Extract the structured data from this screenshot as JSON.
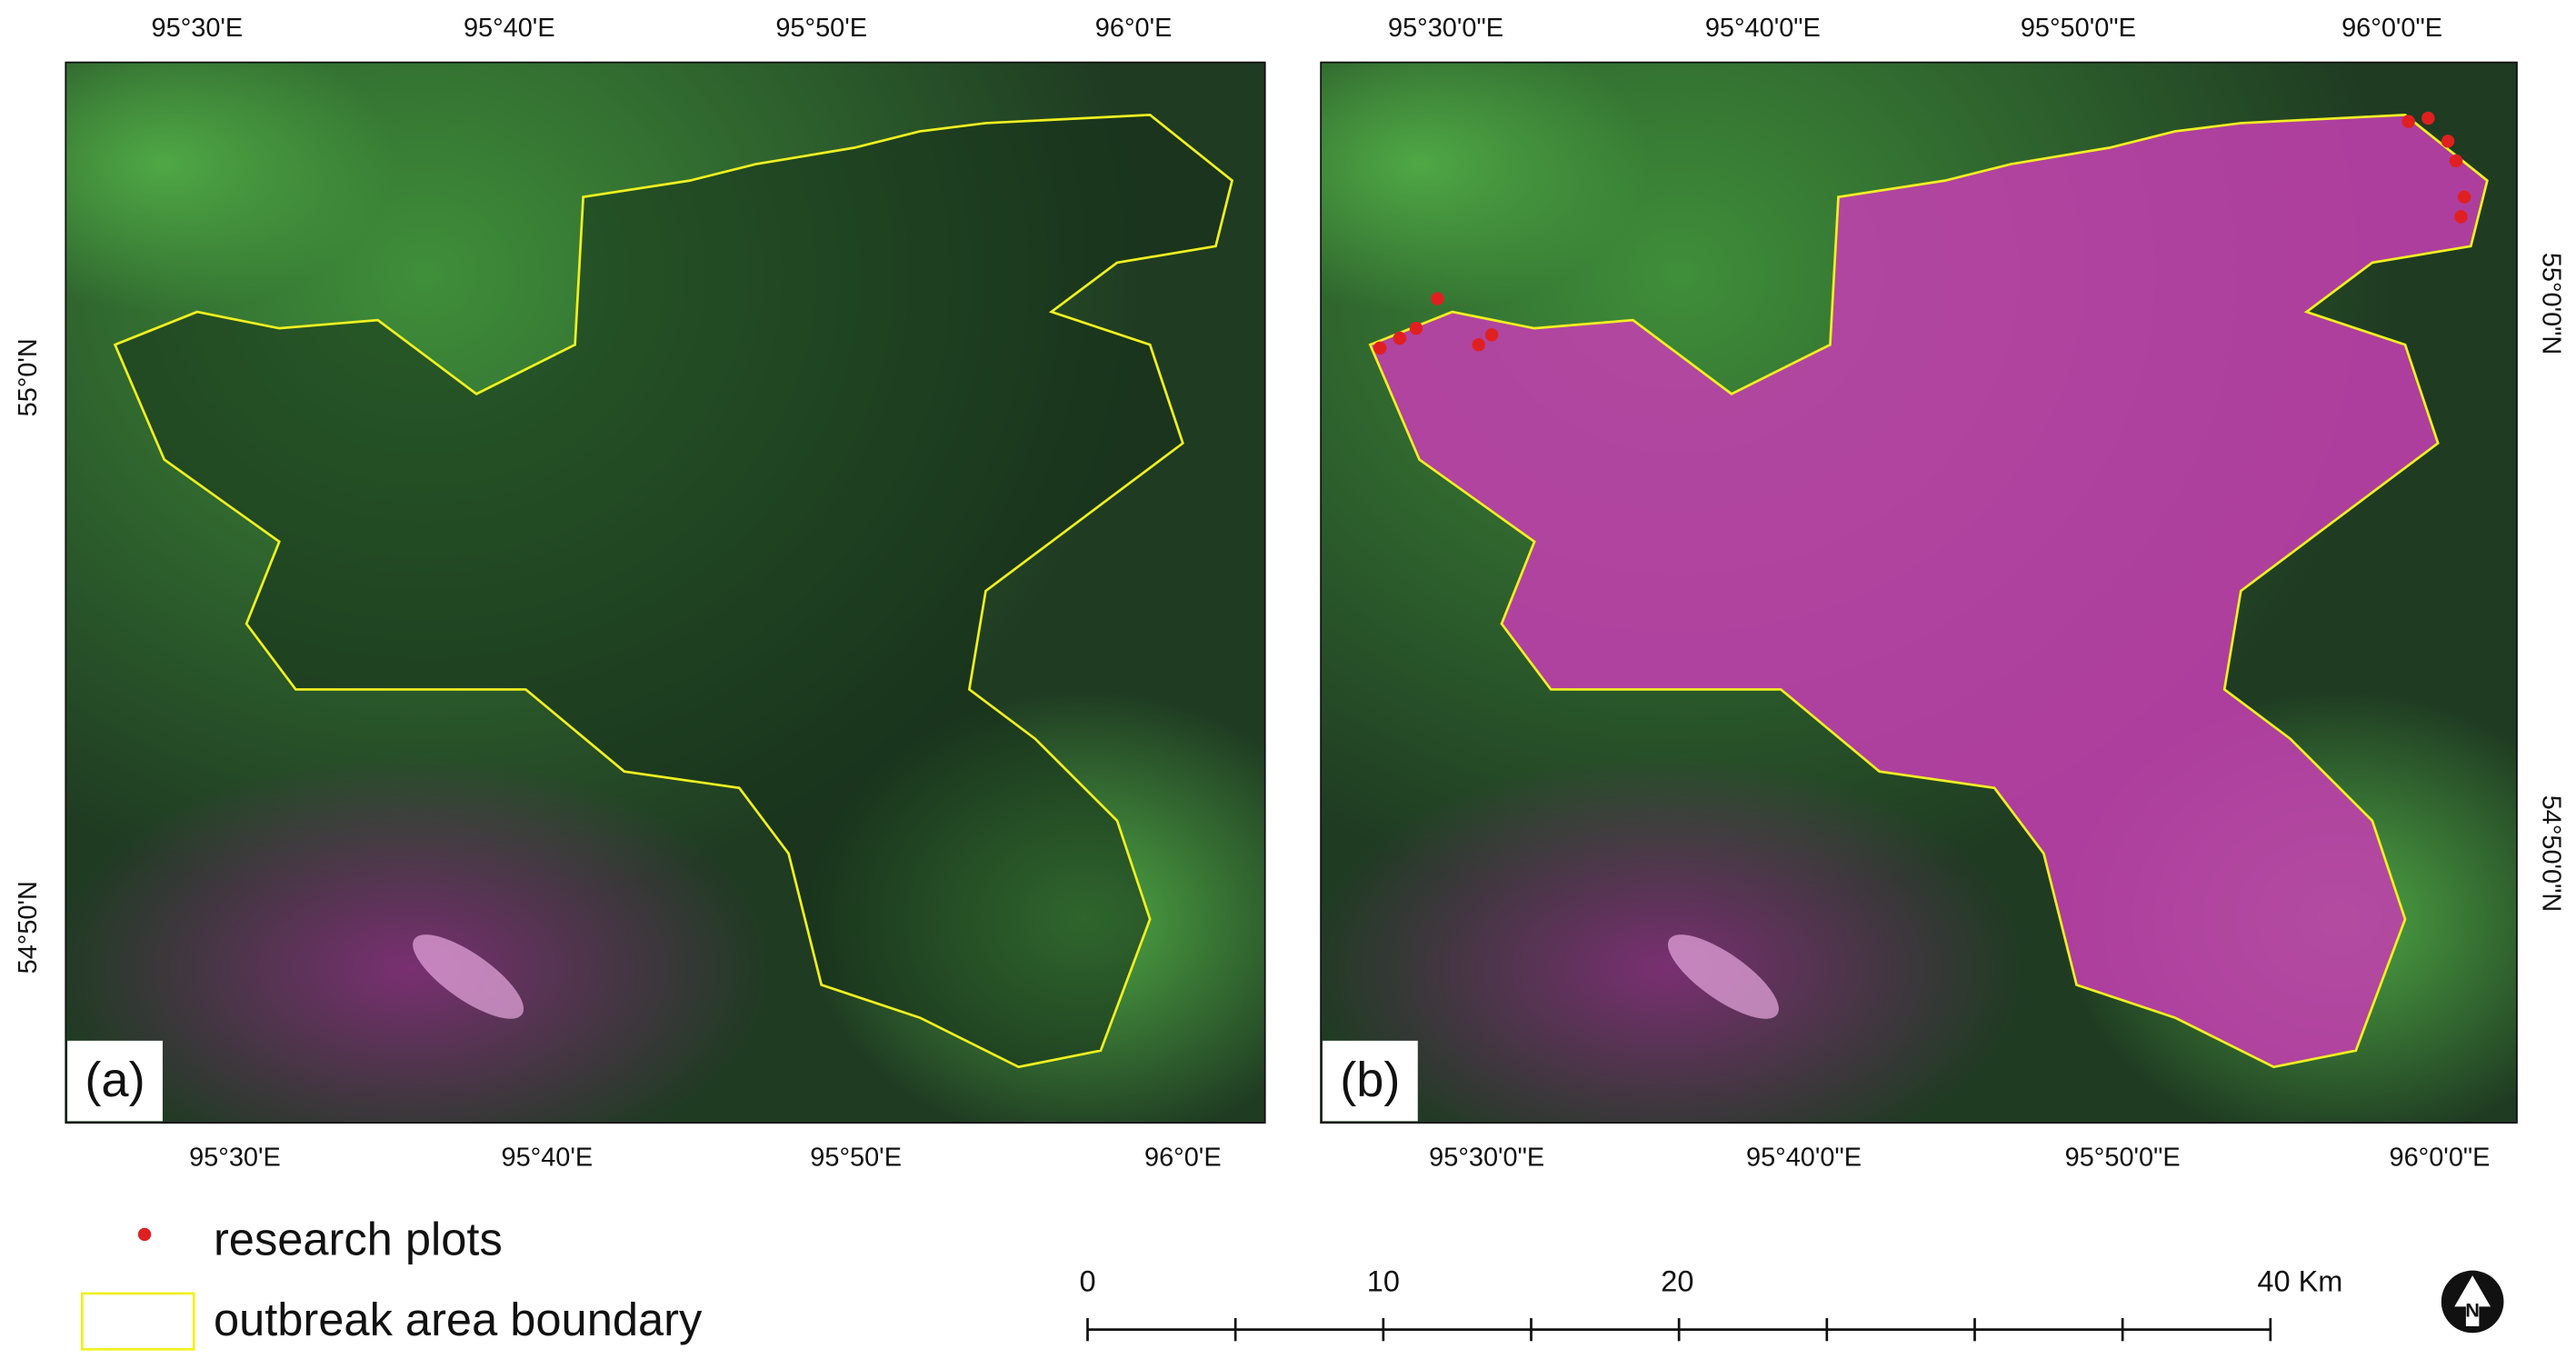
{
  "panels": [
    {
      "label": "(a)",
      "top_labels": [
        "95°30'E",
        "95°40'E",
        "95°50'E",
        "96°0'E"
      ],
      "bottom_labels": [
        "95°30'E",
        "95°40'E",
        "95°50'E",
        "96°0'E"
      ],
      "side_labels": [
        "55°0'N",
        "54°50'N"
      ]
    },
    {
      "label": "(b)",
      "top_labels": [
        "95°30'0\"E",
        "95°40'0\"E",
        "95°50'0\"E",
        "96°0'0\"E"
      ],
      "bottom_labels": [
        "95°30'0\"E",
        "95°40'0\"E",
        "95°50'0\"E",
        "96°0'0\"E"
      ],
      "side_labels": [
        "55°0'0\"N",
        "54°50'0\"N"
      ]
    }
  ],
  "legend": [
    {
      "label": "research plots"
    },
    {
      "label": "outbreak area boundary"
    }
  ],
  "scale_bar": {
    "labels": [
      "0",
      "10",
      "20",
      "40 Km"
    ]
  }
}
